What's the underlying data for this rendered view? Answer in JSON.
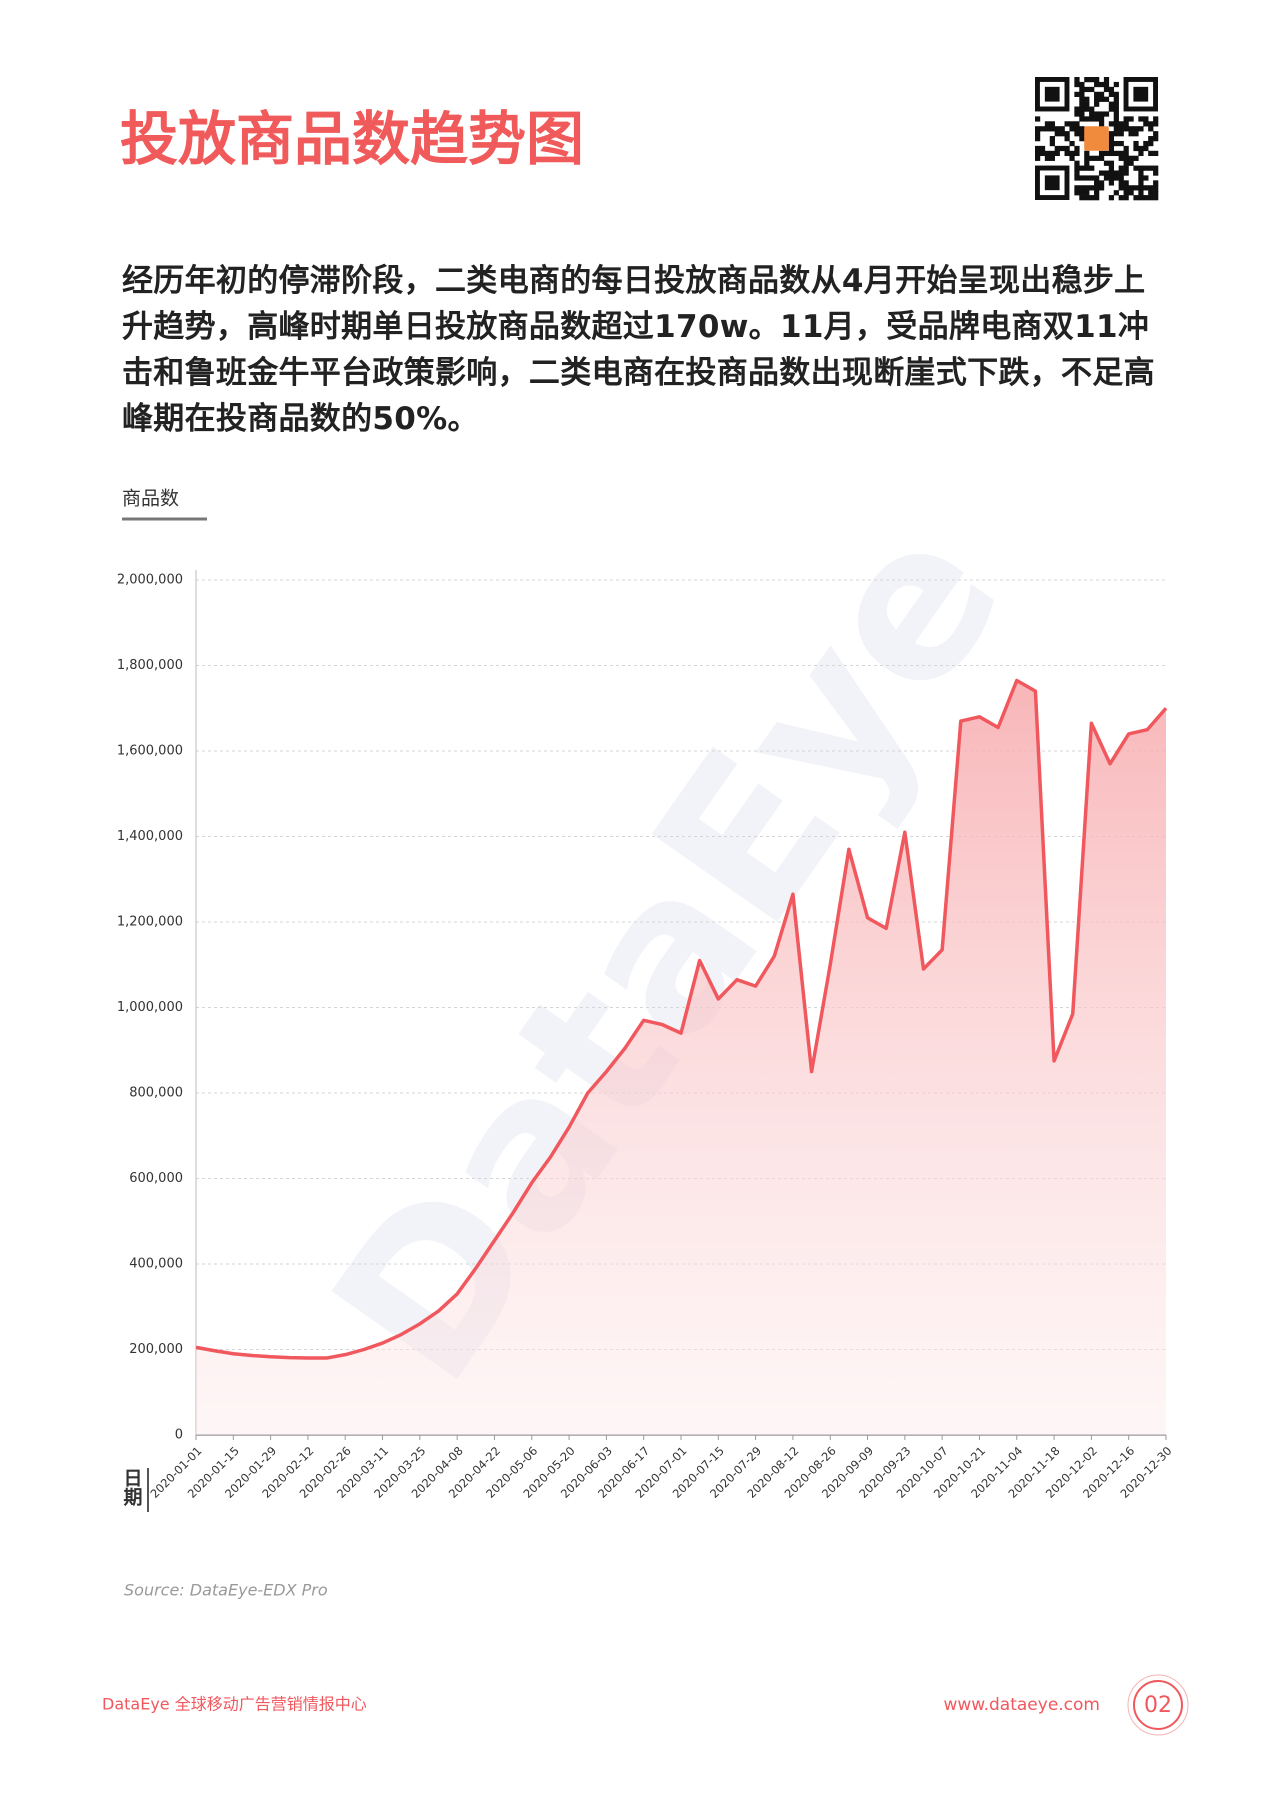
{
  "header": {
    "title": "投放商品数趋势图"
  },
  "paragraph": "经历年初的停滞阶段，二类电商的每日投放商品数从4月开始呈现出稳步上升趋势，高峰时期单日投放商品数超过170w。11月，受品牌电商双11冲击和鲁班金牛平台政策影响，二类电商在投商品数出现断崖式下跌，不足高峰期在投商品数的50%。",
  "chart_data": {
    "type": "area",
    "y_label": "商品数",
    "x_label": "日期",
    "watermark": "DataEye",
    "color": "#f0585e",
    "grid": true,
    "categories": [
      "2020-01-01",
      null,
      "2020-01-15",
      null,
      "2020-01-29",
      null,
      "2020-02-12",
      null,
      "2020-02-26",
      null,
      "2020-03-11",
      null,
      "2020-03-25",
      null,
      "2020-04-08",
      null,
      "2020-04-22",
      null,
      "2020-05-06",
      null,
      "2020-05-20",
      null,
      "2020-06-03",
      null,
      "2020-06-17",
      null,
      "2020-07-01",
      null,
      "2020-07-15",
      null,
      "2020-07-29",
      null,
      "2020-08-12",
      null,
      "2020-08-26",
      null,
      "2020-09-09",
      null,
      "2020-09-23",
      null,
      "2020-10-07",
      null,
      "2020-10-21",
      null,
      "2020-11-04",
      null,
      "2020-11-18",
      null,
      "2020-12-02",
      null,
      "2020-12-16",
      null,
      "2020-12-30"
    ],
    "values": [
      205000,
      197000,
      190000,
      186000,
      183000,
      181000,
      180000,
      180000,
      188000,
      200000,
      215000,
      235000,
      260000,
      290000,
      330000,
      390000,
      455000,
      520000,
      590000,
      650000,
      720000,
      800000,
      850000,
      905000,
      970000,
      960000,
      940000,
      1110000,
      1020000,
      1065000,
      1050000,
      1120000,
      1265000,
      850000,
      1100000,
      1370000,
      1210000,
      1185000,
      1410000,
      1090000,
      1135000,
      1670000,
      1680000,
      1655000,
      1765000,
      1740000,
      875000,
      985000,
      1665000,
      1570000,
      1640000,
      1650000,
      1700000
    ],
    "ylim": [
      0,
      2000000
    ],
    "yticks": [
      0,
      {
        "value": 200000,
        "label": "200,000"
      },
      {
        "value": 400000,
        "label": "400,000"
      },
      {
        "value": 600000,
        "label": "600,000"
      },
      {
        "value": 800000,
        "label": "800,000"
      },
      {
        "value": 1000000,
        "label": "1,000,000"
      },
      {
        "value": 1200000,
        "label": "1,200,000"
      },
      {
        "value": 1400000,
        "label": "1,400,000"
      },
      {
        "value": 1600000,
        "label": "1,600,000"
      },
      {
        "value": 1800000,
        "label": "1,800,000"
      },
      {
        "value": 2000000,
        "label": "2,000,000"
      }
    ]
  },
  "source": "Source: DataEye-EDX Pro",
  "footer": {
    "left": "DataEye 全球移动广告营销情报中心",
    "right": "www.dataeye.com",
    "page": "02"
  }
}
